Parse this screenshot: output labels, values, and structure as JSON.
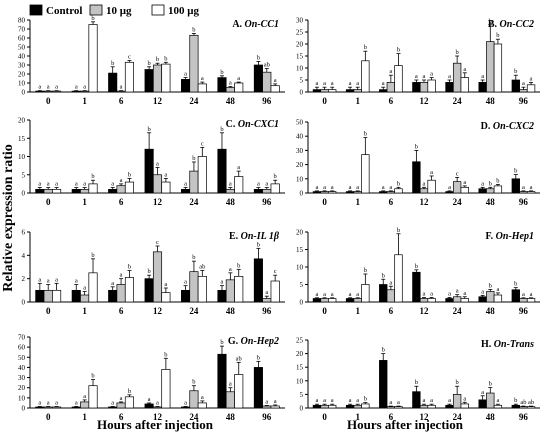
{
  "figure": {
    "ylabel": "Relative expression ratio",
    "xlabel": "Hours after injection",
    "legend": [
      {
        "label": "Control",
        "color": "#000000"
      },
      {
        "label": "10 μg",
        "color": "#c4c4c4"
      },
      {
        "label": "100 μg",
        "color": "#ffffff"
      }
    ]
  },
  "chart_data": [
    {
      "type": "bar",
      "panel": "A.",
      "gene": "On-CC1",
      "categories": [
        "0",
        "1",
        "6",
        "12",
        "24",
        "48",
        "96"
      ],
      "ylim": [
        0,
        80
      ],
      "yticks": [
        0,
        10,
        20,
        30,
        40,
        50,
        60,
        70,
        80
      ],
      "series": [
        {
          "name": "Control",
          "values": [
            1,
            1,
            21,
            25,
            14,
            16,
            30
          ],
          "errors": [
            0.5,
            0.5,
            7,
            3,
            2,
            2,
            4
          ]
        },
        {
          "name": "10 μg",
          "values": [
            1,
            1,
            1,
            30,
            63,
            5,
            22
          ],
          "errors": [
            0.5,
            0.5,
            0.5,
            2,
            2,
            1,
            4
          ]
        },
        {
          "name": "100 μg",
          "values": [
            1,
            75,
            33,
            31,
            9,
            10,
            7
          ],
          "errors": [
            0.5,
            3,
            2,
            2,
            2,
            1,
            2
          ]
        }
      ],
      "letters": [
        [
          "a",
          "a",
          "a"
        ],
        [
          "a",
          "a",
          "b"
        ],
        [
          "b",
          "a",
          "c"
        ],
        [
          "b",
          "b",
          "b"
        ],
        [
          "a",
          "b",
          "a"
        ],
        [
          "b",
          "a",
          "a"
        ],
        [
          "b",
          "ab",
          "a"
        ]
      ]
    },
    {
      "type": "bar",
      "panel": "B.",
      "gene": "On-CC2",
      "categories": [
        "0",
        "1",
        "6",
        "12",
        "24",
        "48",
        "96"
      ],
      "ylim": [
        0,
        30
      ],
      "yticks": [
        0,
        5,
        10,
        15,
        20,
        25,
        30
      ],
      "series": [
        {
          "name": "Control",
          "values": [
            1,
            1,
            1,
            4,
            4,
            4,
            5
          ],
          "errors": [
            1,
            1,
            1,
            1,
            1,
            1,
            2
          ]
        },
        {
          "name": "10 μg",
          "values": [
            1,
            1,
            4,
            4,
            12,
            21,
            1
          ],
          "errors": [
            1,
            1,
            3,
            1,
            3,
            7,
            1
          ]
        },
        {
          "name": "100 μg",
          "values": [
            1,
            13,
            11,
            5,
            6,
            20,
            3
          ],
          "errors": [
            1,
            4,
            5,
            1,
            2,
            2,
            1
          ]
        }
      ],
      "letters": [
        [
          "a",
          "a",
          "a"
        ],
        [
          "a",
          "a",
          "b"
        ],
        [
          "a",
          "a",
          "b"
        ],
        [
          "a",
          "a",
          "a"
        ],
        [
          "a",
          "b",
          "a"
        ],
        [
          "a",
          "b",
          "b"
        ],
        [
          "b",
          "a",
          "a"
        ]
      ]
    },
    {
      "type": "bar",
      "panel": "C.",
      "gene": "On-CXC1",
      "categories": [
        "0",
        "1",
        "6",
        "12",
        "24",
        "48",
        "96"
      ],
      "ylim": [
        0,
        20
      ],
      "yticks": [
        0,
        5,
        10,
        15,
        20
      ],
      "series": [
        {
          "name": "Control",
          "values": [
            1,
            1,
            1,
            12,
            1,
            12,
            1
          ],
          "errors": [
            0.5,
            0.5,
            0.5,
            4.5,
            0.5,
            4.5,
            0.5
          ]
        },
        {
          "name": "10 μg",
          "values": [
            1,
            1,
            2,
            5,
            6,
            1,
            1
          ],
          "errors": [
            0.5,
            0.5,
            0.5,
            2,
            2.5,
            0.5,
            0.5
          ]
        },
        {
          "name": "100 μg",
          "values": [
            1,
            2.5,
            3,
            3,
            10,
            4.5,
            2.5
          ],
          "errors": [
            0.5,
            1,
            1,
            1,
            2.5,
            1.5,
            1
          ]
        }
      ],
      "letters": [
        [
          "a",
          "a",
          "a"
        ],
        [
          "a",
          "a",
          "b"
        ],
        [
          "a",
          "a",
          "b"
        ],
        [
          "b",
          "a",
          "a"
        ],
        [
          "a",
          "b",
          "c"
        ],
        [
          "b",
          "a",
          "a"
        ],
        [
          "a",
          "a",
          "b"
        ]
      ]
    },
    {
      "type": "bar",
      "panel": "D.",
      "gene": "On-CXC2",
      "categories": [
        "0",
        "1",
        "6",
        "12",
        "24",
        "48",
        "96"
      ],
      "ylim": [
        0,
        50
      ],
      "yticks": [
        0,
        10,
        20,
        30,
        40,
        50
      ],
      "series": [
        {
          "name": "Control",
          "values": [
            1,
            1,
            1,
            22,
            1,
            3,
            10
          ],
          "errors": [
            0.5,
            0.5,
            0.5,
            8,
            0.5,
            1,
            3
          ]
        },
        {
          "name": "10 μg",
          "values": [
            1,
            1,
            1,
            3,
            8,
            3,
            1
          ],
          "errors": [
            0.5,
            0.5,
            0.5,
            1,
            3,
            1,
            0.5
          ]
        },
        {
          "name": "100 μg",
          "values": [
            1,
            27,
            3,
            9,
            4,
            5,
            1
          ],
          "errors": [
            0.5,
            12,
            1,
            3,
            1,
            1,
            0.5
          ]
        }
      ],
      "letters": [
        [
          "a",
          "a",
          "a"
        ],
        [
          "a",
          "a",
          "b"
        ],
        [
          "a",
          "a",
          "b"
        ],
        [
          "b",
          "a",
          "a"
        ],
        [
          "a",
          "c",
          "a"
        ],
        [
          "a",
          "b",
          "b"
        ],
        [
          "b",
          "a",
          "a"
        ]
      ]
    },
    {
      "type": "bar",
      "panel": "E.",
      "gene": "On-IL 1β",
      "categories": [
        "0",
        "1",
        "6",
        "12",
        "24",
        "48",
        "96"
      ],
      "ylim": [
        0,
        6
      ],
      "yticks": [
        0,
        2,
        4,
        6
      ],
      "series": [
        {
          "name": "Control",
          "values": [
            1,
            1,
            1,
            2,
            1,
            1,
            3.7
          ],
          "errors": [
            0.6,
            0.5,
            0.3,
            0.3,
            0.4,
            0.4,
            0.9
          ]
        },
        {
          "name": "10 μg",
          "values": [
            1,
            0.6,
            1.5,
            4.3,
            2.6,
            1.9,
            0.3
          ],
          "errors": [
            0.5,
            0.3,
            0.5,
            0.5,
            0.9,
            0.6,
            0.2
          ]
        },
        {
          "name": "100 μg",
          "values": [
            1,
            2.5,
            2.1,
            0.8,
            2.2,
            2.2,
            1.8
          ],
          "errors": [
            0.6,
            1.2,
            0.6,
            0.4,
            0.5,
            0.6,
            0.5
          ]
        }
      ],
      "letters": [
        [
          "a",
          "a",
          "a"
        ],
        [
          "a",
          "a",
          "b"
        ],
        [
          "a",
          "a",
          "b"
        ],
        [
          "b",
          "c",
          "a"
        ],
        [
          "a",
          "b",
          "ab"
        ],
        [
          "a",
          "a",
          "b"
        ],
        [
          "b",
          "a",
          "c"
        ]
      ]
    },
    {
      "type": "bar",
      "panel": "F.",
      "gene": "On-Hep1",
      "categories": [
        "0",
        "1",
        "6",
        "12",
        "24",
        "48",
        "96"
      ],
      "ylim": [
        0,
        20
      ],
      "yticks": [
        0,
        5,
        10,
        15,
        20
      ],
      "series": [
        {
          "name": "Control",
          "values": [
            1,
            1,
            5,
            8.5,
            1,
            1.5,
            3.5
          ],
          "errors": [
            0.2,
            0.2,
            1.5,
            0.7,
            0.3,
            0.4,
            0.6
          ]
        },
        {
          "name": "10 μg",
          "values": [
            1,
            1,
            3.5,
            1,
            1.5,
            3,
            1
          ],
          "errors": [
            0.2,
            0.2,
            1,
            0.3,
            0.6,
            0.6,
            0.2
          ]
        },
        {
          "name": "100 μg",
          "values": [
            1,
            5,
            13.5,
            1,
            1,
            2,
            1
          ],
          "errors": [
            0.2,
            3,
            6,
            0.3,
            0.5,
            0.6,
            0.2
          ]
        }
      ],
      "letters": [
        [
          "a",
          "a",
          "a"
        ],
        [
          "a",
          "a",
          "b"
        ],
        [
          "b",
          "a",
          "b"
        ],
        [
          "b",
          "a",
          "a"
        ],
        [
          "a",
          "a",
          "a"
        ],
        [
          "a",
          "b",
          "a"
        ],
        [
          "b",
          "a",
          "a"
        ]
      ]
    },
    {
      "type": "bar",
      "panel": "G.",
      "gene": "On-Hep2",
      "categories": [
        "0",
        "1",
        "6",
        "12",
        "24",
        "48",
        "96"
      ],
      "ylim": [
        0,
        70
      ],
      "yticks": [
        0,
        10,
        20,
        30,
        40,
        50,
        60,
        70
      ],
      "series": [
        {
          "name": "Control",
          "values": [
            1,
            1,
            1,
            4,
            1,
            53,
            40
          ],
          "errors": [
            0.5,
            0.5,
            0.5,
            1,
            0.5,
            8,
            6
          ]
        },
        {
          "name": "10 μg",
          "values": [
            1,
            6,
            5,
            1,
            17,
            16,
            2
          ],
          "errors": [
            0.5,
            2,
            1,
            0.5,
            5,
            4,
            0.5
          ]
        },
        {
          "name": "100 μg",
          "values": [
            1,
            22,
            11,
            38,
            5,
            33,
            2
          ],
          "errors": [
            0.5,
            6,
            2,
            11,
            2,
            12,
            1
          ]
        }
      ],
      "letters": [
        [
          "a",
          "a",
          "a"
        ],
        [
          "a",
          "a",
          "b"
        ],
        [
          "a",
          "a",
          "b"
        ],
        [
          "a",
          "a",
          "b"
        ],
        [
          "a",
          "b",
          "a"
        ],
        [
          "b",
          "a",
          "ab"
        ],
        [
          "b",
          "a",
          "a"
        ]
      ]
    },
    {
      "type": "bar",
      "panel": "H.",
      "gene": "On-Trans",
      "categories": [
        "0",
        "1",
        "6",
        "12",
        "24",
        "48",
        "96"
      ],
      "ylim": [
        0,
        25
      ],
      "yticks": [
        0,
        5,
        10,
        15,
        20,
        25
      ],
      "series": [
        {
          "name": "Control",
          "values": [
            1,
            1,
            17.5,
            6,
            1,
            3,
            1
          ],
          "errors": [
            0.4,
            0.4,
            2.5,
            2,
            0.4,
            1.5,
            0.4
          ]
        },
        {
          "name": "10 μg",
          "values": [
            1,
            1,
            0.5,
            1,
            5,
            5.5,
            0.5
          ],
          "errors": [
            0.4,
            0.4,
            0.2,
            0.4,
            3,
            2,
            0.2
          ]
        },
        {
          "name": "100 μg",
          "values": [
            1,
            1.5,
            0.5,
            1,
            1.5,
            1,
            0.5
          ],
          "errors": [
            0.4,
            0.5,
            0.2,
            0.4,
            0.6,
            0.4,
            0.2
          ]
        }
      ],
      "letters": [
        [
          "a",
          "a",
          "a"
        ],
        [
          "a",
          "a",
          "b"
        ],
        [
          "b",
          "a",
          "a"
        ],
        [
          "b",
          "a",
          "a"
        ],
        [
          "a",
          "b",
          "a"
        ],
        [
          "a",
          "b",
          "a"
        ],
        [
          "b",
          "ab",
          "ab"
        ]
      ]
    }
  ]
}
